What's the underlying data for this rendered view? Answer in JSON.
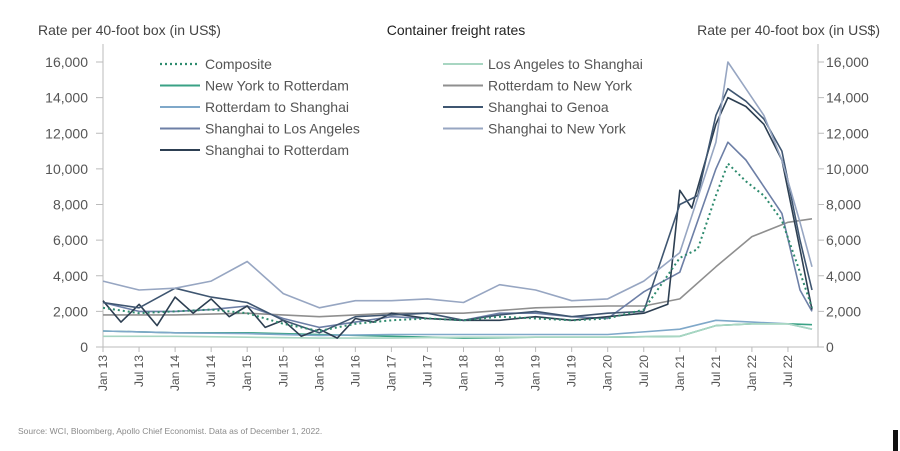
{
  "chart_data": {
    "type": "line",
    "title": "Container freight rates",
    "ylabel_left": "Rate per 40-foot box (in US$)",
    "ylabel_right": "Rate per 40-foot box (in US$)",
    "ylim": [
      0,
      16000
    ],
    "yticks": [
      0,
      2000,
      4000,
      6000,
      8000,
      10000,
      12000,
      14000,
      16000
    ],
    "ytick_labels": [
      "0",
      "2,000",
      "4,000",
      "6,000",
      "8,000",
      "10,000",
      "12,000",
      "14,000",
      "16,000"
    ],
    "xlim": [
      "2013-01",
      "2022-12"
    ],
    "xtick_labels": [
      "Jan 13",
      "Jul 13",
      "Jan 14",
      "Jul 14",
      "Jan 15",
      "Jul 15",
      "Jan 16",
      "Jul 16",
      "Jan 17",
      "Jul 17",
      "Jan 18",
      "Jul 18",
      "Jan 19",
      "Jul 19",
      "Jan 20",
      "Jul 20",
      "Jan 21",
      "Jul 21",
      "Jan 22",
      "Jul 22"
    ],
    "grid": false,
    "legend_position": "top-left",
    "series": [
      {
        "name": "Composite",
        "color": "#2e8b6e",
        "style": "dotted",
        "legend_col": 0,
        "points": [
          [
            "2013-01",
            2200
          ],
          [
            "2013-07",
            1900
          ],
          [
            "2014-01",
            2000
          ],
          [
            "2014-07",
            2100
          ],
          [
            "2015-01",
            1900
          ],
          [
            "2015-07",
            1300
          ],
          [
            "2016-01",
            900
          ],
          [
            "2016-07",
            1300
          ],
          [
            "2017-01",
            1500
          ],
          [
            "2017-07",
            1600
          ],
          [
            "2018-01",
            1500
          ],
          [
            "2018-07",
            1700
          ],
          [
            "2019-01",
            1600
          ],
          [
            "2019-07",
            1500
          ],
          [
            "2020-01",
            1600
          ],
          [
            "2020-07",
            2100
          ],
          [
            "2021-01",
            5000
          ],
          [
            "2021-04",
            5500
          ],
          [
            "2021-07",
            8500
          ],
          [
            "2021-09",
            10300
          ],
          [
            "2021-12",
            9300
          ],
          [
            "2022-03",
            8500
          ],
          [
            "2022-06",
            7100
          ],
          [
            "2022-09",
            4200
          ],
          [
            "2022-11",
            2200
          ]
        ]
      },
      {
        "name": "New York to Rotterdam",
        "color": "#3aa285",
        "style": "solid",
        "legend_col": 0,
        "points": [
          [
            "2013-01",
            900
          ],
          [
            "2014-01",
            800
          ],
          [
            "2015-01",
            800
          ],
          [
            "2016-01",
            700
          ],
          [
            "2017-01",
            600
          ],
          [
            "2018-01",
            500
          ],
          [
            "2019-01",
            550
          ],
          [
            "2020-01",
            550
          ],
          [
            "2021-01",
            600
          ],
          [
            "2021-07",
            1200
          ],
          [
            "2022-01",
            1300
          ],
          [
            "2022-07",
            1300
          ],
          [
            "2022-11",
            1250
          ]
        ]
      },
      {
        "name": "Rotterdam to Shanghai",
        "color": "#7fa8c9",
        "style": "solid",
        "legend_col": 0,
        "points": [
          [
            "2013-01",
            900
          ],
          [
            "2014-01",
            800
          ],
          [
            "2015-01",
            750
          ],
          [
            "2016-01",
            650
          ],
          [
            "2017-01",
            700
          ],
          [
            "2018-01",
            700
          ],
          [
            "2019-01",
            700
          ],
          [
            "2020-01",
            700
          ],
          [
            "2021-01",
            1000
          ],
          [
            "2021-07",
            1500
          ],
          [
            "2022-01",
            1400
          ],
          [
            "2022-07",
            1300
          ],
          [
            "2022-11",
            1000
          ]
        ]
      },
      {
        "name": "Shanghai to Los Angeles",
        "color": "#6d7fa6",
        "style": "solid",
        "legend_col": 0,
        "points": [
          [
            "2013-01",
            2500
          ],
          [
            "2013-07",
            2000
          ],
          [
            "2014-01",
            2000
          ],
          [
            "2014-07",
            2100
          ],
          [
            "2015-01",
            2300
          ],
          [
            "2015-07",
            1600
          ],
          [
            "2016-01",
            1100
          ],
          [
            "2016-07",
            1400
          ],
          [
            "2017-01",
            1700
          ],
          [
            "2017-07",
            1600
          ],
          [
            "2018-01",
            1500
          ],
          [
            "2018-07",
            1900
          ],
          [
            "2019-01",
            1900
          ],
          [
            "2019-07",
            1700
          ],
          [
            "2020-01",
            1600
          ],
          [
            "2020-07",
            3100
          ],
          [
            "2021-01",
            4200
          ],
          [
            "2021-07",
            10000
          ],
          [
            "2021-09",
            11500
          ],
          [
            "2021-12",
            10500
          ],
          [
            "2022-03",
            9000
          ],
          [
            "2022-06",
            7500
          ],
          [
            "2022-09",
            3200
          ],
          [
            "2022-11",
            2000
          ]
        ]
      },
      {
        "name": "Shanghai to Rotterdam",
        "color": "#2d3f52",
        "style": "solid",
        "legend_col": 0,
        "points": [
          [
            "2013-01",
            2600
          ],
          [
            "2013-04",
            1400
          ],
          [
            "2013-07",
            2400
          ],
          [
            "2013-10",
            1200
          ],
          [
            "2014-01",
            2800
          ],
          [
            "2014-04",
            1900
          ],
          [
            "2014-07",
            2700
          ],
          [
            "2014-10",
            1700
          ],
          [
            "2015-01",
            2300
          ],
          [
            "2015-04",
            1100
          ],
          [
            "2015-07",
            1500
          ],
          [
            "2015-10",
            600
          ],
          [
            "2016-01",
            1000
          ],
          [
            "2016-04",
            500
          ],
          [
            "2016-07",
            1600
          ],
          [
            "2016-10",
            1400
          ],
          [
            "2017-01",
            1900
          ],
          [
            "2017-07",
            1600
          ],
          [
            "2018-01",
            1500
          ],
          [
            "2018-07",
            1500
          ],
          [
            "2019-01",
            1700
          ],
          [
            "2019-07",
            1500
          ],
          [
            "2020-01",
            1700
          ],
          [
            "2020-07",
            1900
          ],
          [
            "2020-11",
            2400
          ],
          [
            "2021-01",
            8800
          ],
          [
            "2021-03",
            7800
          ],
          [
            "2021-07",
            12500
          ],
          [
            "2021-09",
            14000
          ],
          [
            "2021-12",
            13500
          ],
          [
            "2022-03",
            12500
          ],
          [
            "2022-06",
            10500
          ],
          [
            "2022-09",
            5500
          ],
          [
            "2022-11",
            2100
          ]
        ]
      },
      {
        "name": "Los Angeles to Shanghai",
        "color": "#a8d6c2",
        "style": "solid",
        "legend_col": 1,
        "points": [
          [
            "2013-01",
            600
          ],
          [
            "2014-01",
            600
          ],
          [
            "2015-01",
            550
          ],
          [
            "2016-01",
            500
          ],
          [
            "2017-01",
            500
          ],
          [
            "2018-01",
            550
          ],
          [
            "2019-01",
            550
          ],
          [
            "2020-01",
            550
          ],
          [
            "2021-01",
            600
          ],
          [
            "2021-07",
            1200
          ],
          [
            "2022-01",
            1300
          ],
          [
            "2022-07",
            1300
          ],
          [
            "2022-11",
            1000
          ]
        ]
      },
      {
        "name": "Rotterdam to New York",
        "color": "#8f8f8f",
        "style": "solid",
        "legend_col": 1,
        "points": [
          [
            "2013-01",
            1800
          ],
          [
            "2014-01",
            1800
          ],
          [
            "2015-01",
            1900
          ],
          [
            "2016-01",
            1700
          ],
          [
            "2017-01",
            1900
          ],
          [
            "2018-01",
            1900
          ],
          [
            "2019-01",
            2200
          ],
          [
            "2020-01",
            2300
          ],
          [
            "2020-07",
            2300
          ],
          [
            "2021-01",
            2700
          ],
          [
            "2021-07",
            4500
          ],
          [
            "2022-01",
            6200
          ],
          [
            "2022-07",
            7000
          ],
          [
            "2022-11",
            7200
          ]
        ]
      },
      {
        "name": "Shanghai to Genoa",
        "color": "#3f5671",
        "style": "solid",
        "legend_col": 1,
        "points": [
          [
            "2013-01",
            2500
          ],
          [
            "2013-07",
            2200
          ],
          [
            "2014-01",
            3300
          ],
          [
            "2014-07",
            2800
          ],
          [
            "2015-01",
            2500
          ],
          [
            "2015-07",
            1500
          ],
          [
            "2016-01",
            800
          ],
          [
            "2016-07",
            1700
          ],
          [
            "2017-01",
            1800
          ],
          [
            "2017-07",
            1900
          ],
          [
            "2018-01",
            1500
          ],
          [
            "2018-07",
            1800
          ],
          [
            "2019-01",
            2000
          ],
          [
            "2019-07",
            1700
          ],
          [
            "2020-01",
            1900
          ],
          [
            "2020-07",
            2000
          ],
          [
            "2021-01",
            8000
          ],
          [
            "2021-04",
            8500
          ],
          [
            "2021-07",
            13000
          ],
          [
            "2021-09",
            14500
          ],
          [
            "2021-12",
            13800
          ],
          [
            "2022-03",
            12800
          ],
          [
            "2022-06",
            11000
          ],
          [
            "2022-09",
            6000
          ],
          [
            "2022-11",
            3200
          ]
        ]
      },
      {
        "name": "Shanghai to New York",
        "color": "#97a6c2",
        "style": "solid",
        "legend_col": 1,
        "points": [
          [
            "2013-01",
            3700
          ],
          [
            "2013-07",
            3200
          ],
          [
            "2014-01",
            3300
          ],
          [
            "2014-07",
            3700
          ],
          [
            "2015-01",
            4800
          ],
          [
            "2015-07",
            3000
          ],
          [
            "2016-01",
            2200
          ],
          [
            "2016-07",
            2600
          ],
          [
            "2017-01",
            2600
          ],
          [
            "2017-07",
            2700
          ],
          [
            "2018-01",
            2500
          ],
          [
            "2018-07",
            3500
          ],
          [
            "2019-01",
            3200
          ],
          [
            "2019-07",
            2600
          ],
          [
            "2020-01",
            2700
          ],
          [
            "2020-07",
            3700
          ],
          [
            "2021-01",
            5300
          ],
          [
            "2021-07",
            11500
          ],
          [
            "2021-09",
            16000
          ],
          [
            "2021-12",
            14500
          ],
          [
            "2022-03",
            13000
          ],
          [
            "2022-06",
            10500
          ],
          [
            "2022-09",
            7000
          ],
          [
            "2022-11",
            4500
          ]
        ]
      }
    ]
  },
  "source_note": "Source: WCI, Bloomberg, Apollo Chief Economist. Data as of December 1, 2022."
}
